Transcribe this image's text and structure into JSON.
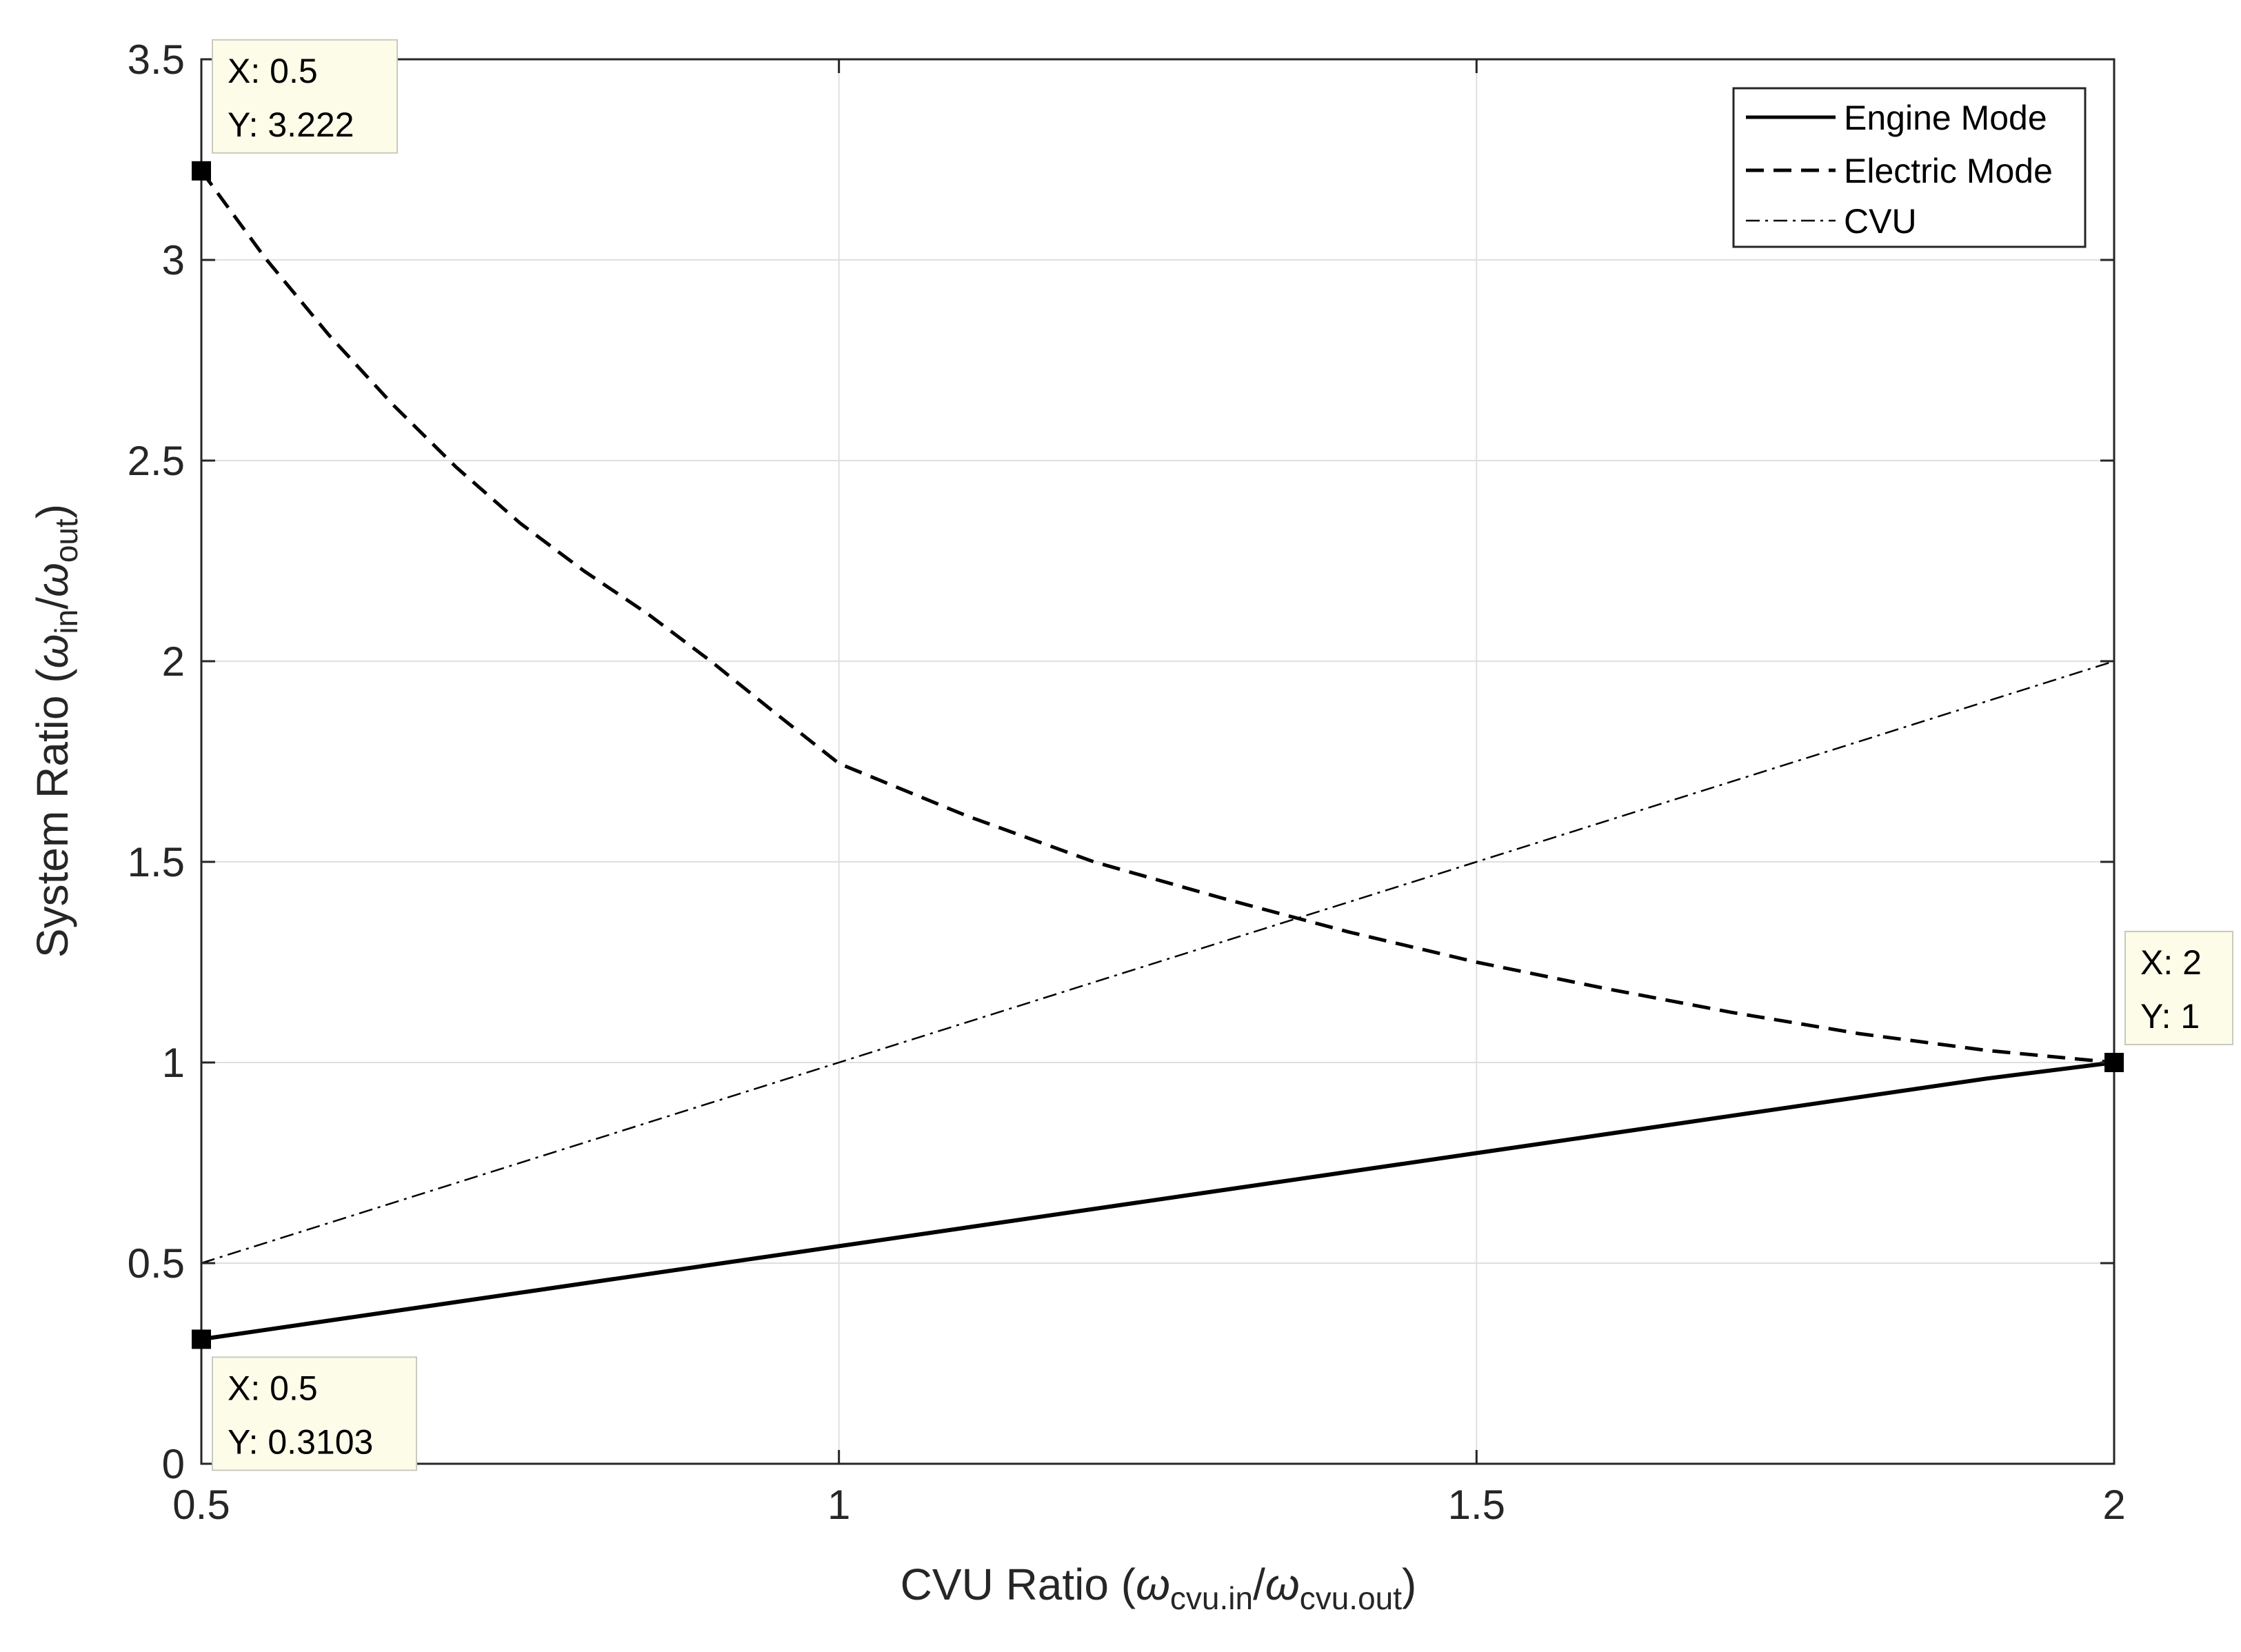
{
  "chart_data": {
    "type": "line",
    "xlabel": {
      "prefix": "CVU Ratio (",
      "num": "ω",
      "num_sub": "cvu.in",
      "den": "ω",
      "den_sub": "cvu.out",
      "suffix": ")"
    },
    "ylabel": {
      "prefix": "System Ratio (",
      "num": "ω",
      "num_sub": "in",
      "den": "ω",
      "den_sub": "out",
      "suffix": ")"
    },
    "xlim": [
      0.5,
      2
    ],
    "ylim": [
      0,
      3.5
    ],
    "xticks": [
      0.5,
      1,
      1.5,
      2
    ],
    "xtick_labels": [
      "0.5",
      "1",
      "1.5",
      "2"
    ],
    "yticks": [
      0,
      0.5,
      1,
      1.5,
      2,
      2.5,
      3,
      3.5
    ],
    "ytick_labels": [
      "0",
      "0.5",
      "1",
      "1.5",
      "2",
      "2.5",
      "3",
      "3.5"
    ],
    "grid": true,
    "legend_position": "top-right",
    "series": [
      {
        "name": "Engine Mode",
        "style": "solid",
        "x": [
          0.5,
          0.6,
          0.7,
          0.8,
          0.9,
          1.0,
          1.1,
          1.2,
          1.3,
          1.4,
          1.5,
          1.6,
          1.7,
          1.8,
          1.9,
          2.0
        ],
        "y": [
          0.3103,
          0.3567,
          0.4031,
          0.4495,
          0.4959,
          0.5423,
          0.5887,
          0.6351,
          0.6815,
          0.7279,
          0.7743,
          0.8207,
          0.8671,
          0.9135,
          0.9599,
          1.0
        ]
      },
      {
        "name": "Electric Mode",
        "style": "dashed",
        "x": [
          0.5,
          0.55,
          0.6,
          0.65,
          0.7,
          0.75,
          0.8,
          0.85,
          0.9,
          0.95,
          1.0,
          1.1,
          1.2,
          1.3,
          1.4,
          1.5,
          1.6,
          1.7,
          1.8,
          1.9,
          2.0
        ],
        "y": [
          3.222,
          3.005,
          2.813,
          2.64,
          2.483,
          2.344,
          2.225,
          2.118,
          1.999,
          1.871,
          1.745,
          1.615,
          1.5,
          1.41,
          1.325,
          1.25,
          1.185,
          1.125,
          1.072,
          1.03,
          1.0
        ]
      },
      {
        "name": "CVU",
        "style": "dashdot",
        "x": [
          0.5,
          2.0
        ],
        "y": [
          0.5,
          2.0
        ]
      }
    ],
    "datatips": [
      {
        "x": 0.5,
        "y": 3.222,
        "x_text": "X: 0.5",
        "y_text": "Y: 3.222",
        "placement": "above-right"
      },
      {
        "x": 2,
        "y": 1,
        "x_text": "X: 2",
        "y_text": "Y: 1",
        "placement": "above-right"
      },
      {
        "x": 0.5,
        "y": 0.3103,
        "x_text": "X: 0.5",
        "y_text": "Y: 0.3103",
        "placement": "below-right"
      }
    ],
    "colors": {
      "grid": "#dfdfdf",
      "axis": "#262626",
      "line": "#000000",
      "tip_bg": "#fcfce9",
      "tip_border": "#c9c9bf"
    }
  }
}
